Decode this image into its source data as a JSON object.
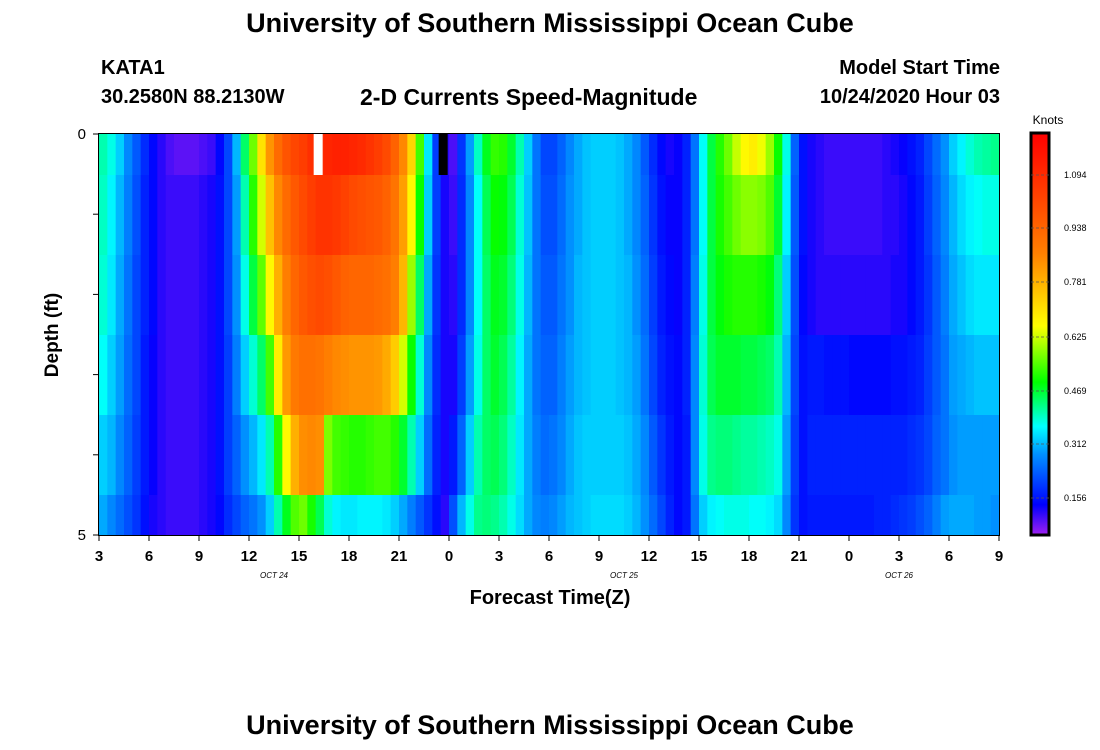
{
  "page": {
    "title_top": "University of Southern Mississippi Ocean Cube",
    "title_bottom": "University of Southern Mississippi Ocean Cube",
    "station_id": "KATA1",
    "station_coords": "30.2580N 88.2130W",
    "model_start_label": "Model Start Time",
    "model_start_value": "10/24/2020 Hour 03"
  },
  "chart_data": {
    "type": "heatmap",
    "title": "2-D Currents Speed-Magnitude",
    "xlabel": "Forecast Time(Z)",
    "ylabel": "Depth (ft)",
    "colorbar_label": "Knots",
    "x_tick_labels": [
      "3",
      "6",
      "9",
      "12",
      "15",
      "18",
      "21",
      "0",
      "3",
      "6",
      "9",
      "12",
      "15",
      "18",
      "21",
      "0",
      "3",
      "6",
      "9"
    ],
    "y_tick_labels": [
      "0",
      "5"
    ],
    "date_labels": [
      {
        "text": "OCT 24",
        "at_tick_index": 3.5
      },
      {
        "text": "OCT 25",
        "at_tick_index": 10.5
      },
      {
        "text": "OCT 26",
        "at_tick_index": 16
      }
    ],
    "colorbar_ticks": [
      "1.094",
      "0.938",
      "0.781",
      "0.625",
      "0.469",
      "0.312",
      "0.156"
    ],
    "color_scale": {
      "min": 0.0,
      "max": 1.25,
      "stops": [
        "#a020f0",
        "#0000ff",
        "#0090ff",
        "#00ffff",
        "#00ff00",
        "#ffff00",
        "#ff8000",
        "#ff0000"
      ]
    },
    "x_range_hours": [
      3,
      57
    ],
    "depth_levels": 6,
    "columns": [
      {
        "hour": 3.0,
        "values": [
          0.38,
          0.37,
          0.36,
          0.34,
          0.3,
          0.27
        ]
      },
      {
        "hour": 3.5,
        "values": [
          0.35,
          0.33,
          0.32,
          0.3,
          0.28,
          0.24
        ]
      },
      {
        "hour": 4.0,
        "values": [
          0.3,
          0.28,
          0.27,
          0.26,
          0.24,
          0.21
        ]
      },
      {
        "hour": 4.5,
        "values": [
          0.24,
          0.23,
          0.22,
          0.21,
          0.2,
          0.18
        ]
      },
      {
        "hour": 5.0,
        "values": [
          0.19,
          0.18,
          0.17,
          0.17,
          0.16,
          0.15
        ]
      },
      {
        "hour": 5.5,
        "values": [
          0.14,
          0.13,
          0.13,
          0.12,
          0.12,
          0.11
        ]
      },
      {
        "hour": 6.0,
        "values": [
          0.1,
          0.1,
          0.1,
          0.09,
          0.09,
          0.08
        ]
      },
      {
        "hour": 6.5,
        "values": [
          0.07,
          0.07,
          0.07,
          0.07,
          0.07,
          0.07
        ]
      },
      {
        "hour": 7.0,
        "values": [
          0.05,
          0.06,
          0.06,
          0.06,
          0.06,
          0.06
        ]
      },
      {
        "hour": 7.5,
        "values": [
          0.04,
          0.06,
          0.06,
          0.06,
          0.06,
          0.06
        ]
      },
      {
        "hour": 8.0,
        "values": [
          0.04,
          0.06,
          0.06,
          0.06,
          0.06,
          0.06
        ]
      },
      {
        "hour": 8.5,
        "values": [
          0.04,
          0.06,
          0.06,
          0.06,
          0.06,
          0.06
        ]
      },
      {
        "hour": 9.0,
        "values": [
          0.05,
          0.07,
          0.07,
          0.07,
          0.07,
          0.07
        ]
      },
      {
        "hour": 9.5,
        "values": [
          0.06,
          0.08,
          0.08,
          0.08,
          0.08,
          0.08
        ]
      },
      {
        "hour": 10.0,
        "values": [
          0.1,
          0.11,
          0.11,
          0.11,
          0.11,
          0.1
        ]
      },
      {
        "hour": 10.5,
        "values": [
          0.17,
          0.17,
          0.17,
          0.16,
          0.16,
          0.14
        ]
      },
      {
        "hour": 11.0,
        "values": [
          0.28,
          0.26,
          0.25,
          0.23,
          0.2,
          0.17
        ]
      },
      {
        "hour": 11.5,
        "values": [
          0.42,
          0.38,
          0.35,
          0.3,
          0.25,
          0.2
        ]
      },
      {
        "hour": 12.0,
        "values": [
          0.55,
          0.5,
          0.44,
          0.36,
          0.28,
          0.22
        ]
      },
      {
        "hour": 12.5,
        "values": [
          0.7,
          0.62,
          0.54,
          0.42,
          0.32,
          0.25
        ]
      },
      {
        "hour": 13.0,
        "values": [
          0.84,
          0.76,
          0.66,
          0.52,
          0.38,
          0.3
        ]
      },
      {
        "hour": 13.5,
        "values": [
          0.92,
          0.86,
          0.79,
          0.68,
          0.5,
          0.38
        ]
      },
      {
        "hour": 14.0,
        "values": [
          0.97,
          0.92,
          0.88,
          0.83,
          0.66,
          0.46
        ]
      },
      {
        "hour": 14.5,
        "values": [
          1.0,
          0.96,
          0.93,
          0.89,
          0.79,
          0.53
        ]
      },
      {
        "hour": 15.0,
        "values": [
          1.02,
          0.99,
          0.96,
          0.91,
          0.85,
          0.55
        ]
      },
      {
        "hour": 15.5,
        "values": [
          1.05,
          1.02,
          0.98,
          0.91,
          0.86,
          0.49
        ]
      },
      {
        "hour": 16.0,
        "values": [
          1.06,
          1.04,
          0.99,
          0.9,
          0.85,
          0.43
        ]
      },
      {
        "hour": 16.5,
        "values": [
          1.07,
          1.04,
          0.98,
          0.88,
          0.56,
          0.36
        ]
      },
      {
        "hour": 17.0,
        "values": [
          1.08,
          1.03,
          0.96,
          0.86,
          0.52,
          0.33
        ]
      },
      {
        "hour": 17.5,
        "values": [
          1.08,
          1.01,
          0.94,
          0.85,
          0.51,
          0.32
        ]
      },
      {
        "hour": 18.0,
        "values": [
          1.07,
          0.99,
          0.93,
          0.84,
          0.5,
          0.32
        ]
      },
      {
        "hour": 18.5,
        "values": [
          1.06,
          0.98,
          0.93,
          0.84,
          0.5,
          0.33
        ]
      },
      {
        "hour": 19.0,
        "values": [
          1.04,
          0.97,
          0.93,
          0.84,
          0.51,
          0.33
        ]
      },
      {
        "hour": 19.5,
        "values": [
          1.02,
          0.96,
          0.92,
          0.83,
          0.52,
          0.33
        ]
      },
      {
        "hour": 20.0,
        "values": [
          0.99,
          0.94,
          0.91,
          0.8,
          0.52,
          0.32
        ]
      },
      {
        "hour": 20.5,
        "values": [
          0.94,
          0.9,
          0.88,
          0.74,
          0.5,
          0.3
        ]
      },
      {
        "hour": 21.0,
        "values": [
          0.86,
          0.82,
          0.78,
          0.62,
          0.45,
          0.27
        ]
      },
      {
        "hour": 21.5,
        "values": [
          0.72,
          0.66,
          0.58,
          0.48,
          0.38,
          0.23
        ]
      },
      {
        "hour": 22.0,
        "values": [
          0.52,
          0.48,
          0.42,
          0.36,
          0.3,
          0.19
        ]
      },
      {
        "hour": 22.5,
        "values": [
          0.32,
          0.3,
          0.27,
          0.24,
          0.21,
          0.15
        ]
      },
      {
        "hour": 23.0,
        "values": [
          0.16,
          0.16,
          0.15,
          0.14,
          0.13,
          0.11
        ]
      },
      {
        "hour": 23.5,
        "values": [
          0.07,
          0.08,
          0.08,
          0.08,
          0.08,
          0.07
        ]
      },
      {
        "hour": 24.0,
        "values": [
          0.05,
          0.06,
          0.07,
          0.08,
          0.12,
          0.18
        ]
      },
      {
        "hour": 24.5,
        "values": [
          0.15,
          0.14,
          0.14,
          0.16,
          0.2,
          0.28
        ]
      },
      {
        "hour": 25.0,
        "values": [
          0.26,
          0.24,
          0.24,
          0.26,
          0.3,
          0.35
        ]
      },
      {
        "hour": 25.5,
        "values": [
          0.37,
          0.34,
          0.34,
          0.35,
          0.38,
          0.4
        ]
      },
      {
        "hour": 26.0,
        "values": [
          0.46,
          0.43,
          0.42,
          0.42,
          0.42,
          0.41
        ]
      },
      {
        "hour": 26.5,
        "values": [
          0.51,
          0.48,
          0.46,
          0.45,
          0.43,
          0.4
        ]
      },
      {
        "hour": 27.0,
        "values": [
          0.5,
          0.47,
          0.45,
          0.43,
          0.41,
          0.38
        ]
      },
      {
        "hour": 27.5,
        "values": [
          0.45,
          0.43,
          0.41,
          0.39,
          0.37,
          0.35
        ]
      },
      {
        "hour": 28.0,
        "values": [
          0.38,
          0.36,
          0.35,
          0.33,
          0.32,
          0.31
        ]
      },
      {
        "hour": 28.5,
        "values": [
          0.3,
          0.29,
          0.28,
          0.27,
          0.27,
          0.27
        ]
      },
      {
        "hour": 29.0,
        "values": [
          0.22,
          0.22,
          0.22,
          0.22,
          0.23,
          0.24
        ]
      },
      {
        "hour": 29.5,
        "values": [
          0.17,
          0.18,
          0.19,
          0.2,
          0.21,
          0.23
        ]
      },
      {
        "hour": 30.0,
        "values": [
          0.17,
          0.18,
          0.19,
          0.2,
          0.22,
          0.24
        ]
      },
      {
        "hour": 30.5,
        "values": [
          0.2,
          0.21,
          0.22,
          0.23,
          0.24,
          0.26
        ]
      },
      {
        "hour": 31.0,
        "values": [
          0.24,
          0.25,
          0.25,
          0.26,
          0.27,
          0.28
        ]
      },
      {
        "hour": 31.5,
        "values": [
          0.27,
          0.27,
          0.28,
          0.28,
          0.29,
          0.29
        ]
      },
      {
        "hour": 32.0,
        "values": [
          0.29,
          0.29,
          0.29,
          0.29,
          0.3,
          0.3
        ]
      },
      {
        "hour": 32.5,
        "values": [
          0.3,
          0.3,
          0.3,
          0.3,
          0.3,
          0.31
        ]
      },
      {
        "hour": 33.0,
        "values": [
          0.3,
          0.3,
          0.3,
          0.3,
          0.3,
          0.31
        ]
      },
      {
        "hour": 33.5,
        "values": [
          0.3,
          0.3,
          0.3,
          0.3,
          0.3,
          0.31
        ]
      },
      {
        "hour": 34.0,
        "values": [
          0.29,
          0.29,
          0.29,
          0.29,
          0.3,
          0.31
        ]
      },
      {
        "hour": 34.5,
        "values": [
          0.27,
          0.27,
          0.28,
          0.28,
          0.29,
          0.3
        ]
      },
      {
        "hour": 35.0,
        "values": [
          0.24,
          0.24,
          0.25,
          0.26,
          0.27,
          0.28
        ]
      },
      {
        "hour": 35.5,
        "values": [
          0.19,
          0.2,
          0.21,
          0.22,
          0.24,
          0.25
        ]
      },
      {
        "hour": 36.0,
        "values": [
          0.14,
          0.15,
          0.16,
          0.17,
          0.19,
          0.21
        ]
      },
      {
        "hour": 36.5,
        "values": [
          0.1,
          0.11,
          0.12,
          0.13,
          0.15,
          0.17
        ]
      },
      {
        "hour": 37.0,
        "values": [
          0.08,
          0.09,
          0.1,
          0.11,
          0.12,
          0.13
        ]
      },
      {
        "hour": 37.5,
        "values": [
          0.09,
          0.09,
          0.09,
          0.1,
          0.1,
          0.1
        ]
      },
      {
        "hour": 38.0,
        "values": [
          0.13,
          0.13,
          0.13,
          0.13,
          0.12,
          0.12
        ]
      },
      {
        "hour": 38.5,
        "values": [
          0.22,
          0.22,
          0.23,
          0.24,
          0.24,
          0.22
        ]
      },
      {
        "hour": 39.0,
        "values": [
          0.34,
          0.34,
          0.35,
          0.36,
          0.35,
          0.3
        ]
      },
      {
        "hour": 39.5,
        "values": [
          0.44,
          0.44,
          0.44,
          0.43,
          0.4,
          0.33
        ]
      },
      {
        "hour": 40.0,
        "values": [
          0.5,
          0.49,
          0.47,
          0.45,
          0.41,
          0.34
        ]
      },
      {
        "hour": 40.5,
        "values": [
          0.55,
          0.52,
          0.49,
          0.45,
          0.41,
          0.35
        ]
      },
      {
        "hour": 41.0,
        "values": [
          0.61,
          0.55,
          0.5,
          0.45,
          0.4,
          0.35
        ]
      },
      {
        "hour": 41.5,
        "values": [
          0.66,
          0.57,
          0.5,
          0.44,
          0.39,
          0.35
        ]
      },
      {
        "hour": 42.0,
        "values": [
          0.68,
          0.57,
          0.5,
          0.44,
          0.39,
          0.34
        ]
      },
      {
        "hour": 42.5,
        "values": [
          0.64,
          0.56,
          0.49,
          0.43,
          0.38,
          0.34
        ]
      },
      {
        "hour": 43.0,
        "values": [
          0.58,
          0.53,
          0.47,
          0.42,
          0.37,
          0.33
        ]
      },
      {
        "hour": 43.5,
        "values": [
          0.48,
          0.45,
          0.41,
          0.38,
          0.35,
          0.31
        ]
      },
      {
        "hour": 44.0,
        "values": [
          0.35,
          0.33,
          0.3,
          0.28,
          0.26,
          0.24
        ]
      },
      {
        "hour": 44.5,
        "values": [
          0.2,
          0.19,
          0.18,
          0.17,
          0.16,
          0.15
        ]
      },
      {
        "hour": 45.0,
        "values": [
          0.11,
          0.11,
          0.1,
          0.11,
          0.11,
          0.11
        ]
      },
      {
        "hour": 45.5,
        "values": [
          0.08,
          0.08,
          0.08,
          0.12,
          0.13,
          0.12
        ]
      },
      {
        "hour": 46.0,
        "values": [
          0.07,
          0.07,
          0.07,
          0.12,
          0.13,
          0.12
        ]
      },
      {
        "hour": 46.5,
        "values": [
          0.06,
          0.06,
          0.07,
          0.11,
          0.13,
          0.12
        ]
      },
      {
        "hour": 47.0,
        "values": [
          0.06,
          0.06,
          0.07,
          0.11,
          0.13,
          0.12
        ]
      },
      {
        "hour": 47.5,
        "values": [
          0.06,
          0.06,
          0.07,
          0.11,
          0.13,
          0.12
        ]
      },
      {
        "hour": 48.0,
        "values": [
          0.06,
          0.06,
          0.07,
          0.1,
          0.13,
          0.12
        ]
      },
      {
        "hour": 48.5,
        "values": [
          0.06,
          0.06,
          0.07,
          0.1,
          0.13,
          0.12
        ]
      },
      {
        "hour": 49.0,
        "values": [
          0.06,
          0.06,
          0.07,
          0.1,
          0.13,
          0.12
        ]
      },
      {
        "hour": 49.5,
        "values": [
          0.06,
          0.06,
          0.07,
          0.1,
          0.13,
          0.13
        ]
      },
      {
        "hour": 50.0,
        "values": [
          0.07,
          0.07,
          0.07,
          0.1,
          0.13,
          0.13
        ]
      },
      {
        "hour": 50.5,
        "values": [
          0.08,
          0.07,
          0.08,
          0.11,
          0.13,
          0.14
        ]
      },
      {
        "hour": 51.0,
        "values": [
          0.09,
          0.08,
          0.08,
          0.11,
          0.13,
          0.15
        ]
      },
      {
        "hour": 51.5,
        "values": [
          0.11,
          0.1,
          0.1,
          0.12,
          0.14,
          0.16
        ]
      },
      {
        "hour": 52.0,
        "values": [
          0.13,
          0.12,
          0.12,
          0.13,
          0.15,
          0.18
        ]
      },
      {
        "hour": 52.5,
        "values": [
          0.17,
          0.16,
          0.15,
          0.16,
          0.17,
          0.2
        ]
      },
      {
        "hour": 53.0,
        "values": [
          0.21,
          0.2,
          0.19,
          0.19,
          0.2,
          0.23
        ]
      },
      {
        "hour": 53.5,
        "values": [
          0.25,
          0.24,
          0.23,
          0.22,
          0.22,
          0.26
        ]
      },
      {
        "hour": 54.0,
        "values": [
          0.3,
          0.28,
          0.27,
          0.26,
          0.25,
          0.27
        ]
      },
      {
        "hour": 54.5,
        "values": [
          0.33,
          0.31,
          0.29,
          0.27,
          0.26,
          0.27
        ]
      },
      {
        "hour": 55.0,
        "values": [
          0.36,
          0.33,
          0.31,
          0.28,
          0.26,
          0.27
        ]
      },
      {
        "hour": 55.5,
        "values": [
          0.38,
          0.34,
          0.32,
          0.29,
          0.26,
          0.26
        ]
      },
      {
        "hour": 56.0,
        "values": [
          0.39,
          0.35,
          0.32,
          0.29,
          0.26,
          0.26
        ]
      },
      {
        "hour": 56.5,
        "values": [
          0.4,
          0.35,
          0.32,
          0.29,
          0.26,
          0.25
        ]
      }
    ],
    "special_cells": [
      {
        "hour": 16.0,
        "level": 0,
        "color": "#ffffff"
      },
      {
        "hour": 23.5,
        "level": 0,
        "color": "#000000"
      }
    ]
  }
}
